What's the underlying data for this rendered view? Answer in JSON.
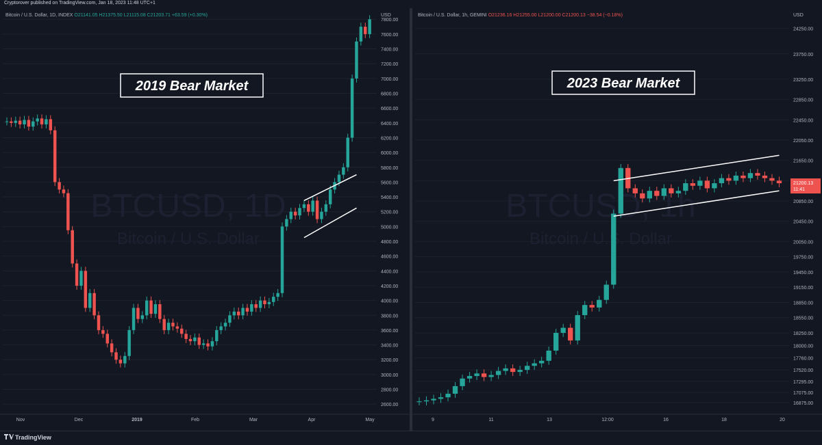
{
  "header": {
    "published": "Cryptorover published on TradingView.com, Jan 18, 2023 11:48 UTC+1"
  },
  "footer": {
    "brand": "TradingView"
  },
  "colors": {
    "up": "#26a69a",
    "down": "#ef5350",
    "bg": "#131722",
    "grid": "#1e222d",
    "text": "#b2b5be",
    "white": "#ffffff"
  },
  "chart_data": [
    {
      "type": "candlestick",
      "legend": {
        "symbol": "Bitcoin / U.S. Dollar, 1D, INDEX",
        "o": "O21141.05",
        "h": "H21375.50",
        "l": "L21115.08",
        "c": "C21203.71",
        "chg": "+63.59 (+0.30%)"
      },
      "watermark": {
        "line1": "BTCUSD, 1D",
        "line2": "Bitcoin / U.S. Dollar"
      },
      "annotation": "2019 Bear Market",
      "currency": "USD",
      "ylim": [
        2500,
        7950
      ],
      "yticks": [
        "7800.00",
        "7600.00",
        "7400.00",
        "7200.00",
        "7000.00",
        "6800.00",
        "6600.00",
        "6400.00",
        "6200.00",
        "6000.00",
        "5800.00",
        "5600.00",
        "5400.00",
        "5200.00",
        "5000.00",
        "4800.00",
        "4600.00",
        "4400.00",
        "4200.00",
        "4000.00",
        "3800.00",
        "3600.00",
        "3400.00",
        "3200.00",
        "3000.00",
        "2800.00",
        "2600.00"
      ],
      "xticks": [
        "Nov",
        "Dec",
        "2019",
        "Feb",
        "Mar",
        "Apr",
        "May"
      ],
      "xtick_bold": "2019",
      "series": [
        {
          "name": "",
          "values": [
            6420,
            6400,
            6430,
            6380,
            6440,
            6350,
            6420,
            6460,
            6380,
            6450,
            6300,
            5600,
            5500,
            5450,
            4950,
            4500,
            4200,
            4400,
            3900,
            4100,
            3800,
            3600,
            3550,
            3420,
            3300,
            3200,
            3150,
            3250,
            3600,
            3900,
            3750,
            3800,
            4000,
            3820,
            3950,
            3750,
            3600,
            3700,
            3650,
            3620,
            3550,
            3480,
            3450,
            3500,
            3400,
            3420,
            3380,
            3450,
            3600,
            3650,
            3700,
            3800,
            3850,
            3800,
            3900,
            3850,
            3950,
            3900,
            4000,
            3950,
            3980,
            4050,
            4100,
            5000,
            5100,
            5200,
            5150,
            5250,
            5300,
            5200,
            5350,
            5100,
            5200,
            5300,
            5500,
            5600,
            5700,
            5800,
            6200,
            7000,
            7500,
            7700,
            7600,
            7800
          ]
        }
      ],
      "channel": {
        "upper": [
          [
            68,
            5350
          ],
          [
            80,
            5700
          ]
        ],
        "lower": [
          [
            68,
            4850
          ],
          [
            80,
            5250
          ]
        ]
      }
    },
    {
      "type": "candlestick",
      "legend": {
        "symbol": "Bitcoin / U.S. Dollar, 1h, GEMINI",
        "o": "O21236.16",
        "h": "H21255.00",
        "l": "L21200.00",
        "c": "C21200.13",
        "chg": "−38.54 (−0.18%)"
      },
      "watermark": {
        "line1": "BTCUSD, 1h",
        "line2": "Bitcoin / U.S. Dollar"
      },
      "annotation": "2023 Bear Market",
      "currency": "USD",
      "last_price": {
        "value": "21200.13",
        "countdown": "11:41"
      },
      "ylim": [
        16700,
        24650
      ],
      "yticks": [
        "24250.00",
        "23750.00",
        "23250.00",
        "22850.00",
        "22450.00",
        "22050.00",
        "21650.00",
        "21250.00",
        "20850.00",
        "20450.00",
        "20050.00",
        "19750.00",
        "19450.00",
        "19150.00",
        "18850.00",
        "18550.00",
        "18250.00",
        "18000.00",
        "17760.00",
        "17520.00",
        "17295.00",
        "17075.00",
        "16875.00"
      ],
      "xticks": [
        "9",
        "11",
        "13",
        "12:00",
        "16",
        "18",
        "20"
      ],
      "series": [
        {
          "name": "",
          "values": [
            16900,
            16920,
            16950,
            16980,
            17050,
            17200,
            17350,
            17400,
            17450,
            17380,
            17420,
            17500,
            17550,
            17480,
            17520,
            17600,
            17650,
            17700,
            17900,
            18250,
            18350,
            18100,
            18600,
            18800,
            18750,
            18900,
            19200,
            20600,
            21500,
            21100,
            21000,
            20900,
            21050,
            20950,
            21100,
            21000,
            21050,
            21200,
            21150,
            21250,
            21100,
            21200,
            21300,
            21250,
            21350,
            21300,
            21400,
            21350,
            21300,
            21250,
            21200
          ]
        }
      ],
      "channel": {
        "upper": [
          [
            27,
            21250
          ],
          [
            50,
            21750
          ]
        ],
        "lower": [
          [
            27,
            20550
          ],
          [
            50,
            21050
          ]
        ]
      }
    }
  ]
}
